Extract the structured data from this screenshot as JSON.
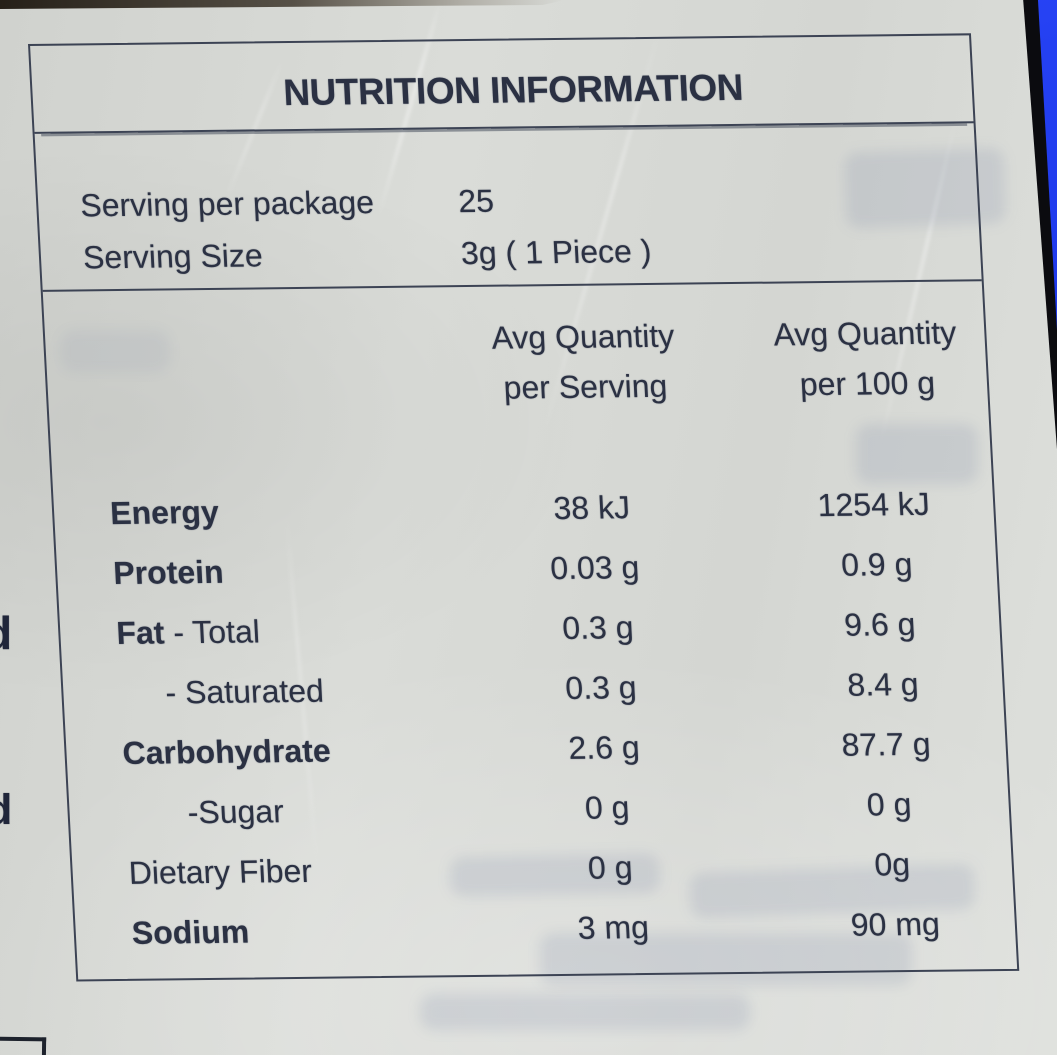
{
  "nutrition_label": {
    "title": "NUTRITION INFORMATION",
    "serving_info": [
      {
        "label": "Serving per package",
        "value": "25"
      },
      {
        "label": "Serving Size",
        "value": "3g ( 1 Piece )"
      }
    ],
    "column_headers": {
      "per_serving_line1": "Avg Quantity",
      "per_serving_line2": "per Serving",
      "per_100g_line1": "Avg Quantity",
      "per_100g_line2": "per 100 g"
    },
    "rows": [
      {
        "bold": "Energy",
        "rest": "",
        "per_serving": "38 kJ",
        "per_100g": "1254 kJ"
      },
      {
        "bold": "Protein",
        "rest": "",
        "per_serving": "0.03 g",
        "per_100g": "0.9 g"
      },
      {
        "bold": "Fat",
        "rest": " - Total",
        "per_serving": "0.3 g",
        "per_100g": "9.6 g"
      },
      {
        "bold": "",
        "rest": "- Saturated",
        "per_serving": "0.3 g",
        "per_100g": "8.4 g"
      },
      {
        "bold": "Carbohydrate",
        "rest": "",
        "per_serving": "2.6 g",
        "per_100g": "87.7 g"
      },
      {
        "bold": "",
        "rest": "-Sugar",
        "per_serving": "0 g",
        "per_100g": "0 g"
      },
      {
        "bold": "",
        "rest": "Dietary Fiber",
        "per_serving": "0 g",
        "per_100g": "0g"
      },
      {
        "bold": "Sodium",
        "rest": "",
        "per_serving": "3 mg",
        "per_100g": "90 mg"
      }
    ]
  },
  "left_edge_fragments": [
    "d",
    "d"
  ],
  "colors": {
    "paper": "#d7d9d5",
    "ink": "#2b3143",
    "table_line": "#3c4354",
    "package_blue": "#1d36ea",
    "edge_shadow": "#0b0b0f"
  }
}
